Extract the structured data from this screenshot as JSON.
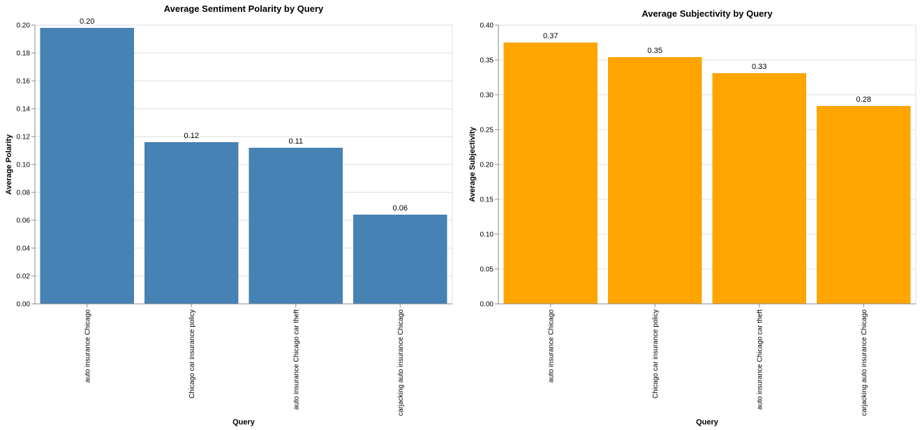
{
  "chart_data": [
    {
      "type": "bar",
      "title": "Average Sentiment Polarity by Query",
      "xlabel": "Query",
      "ylabel": "Average Polarity",
      "categories": [
        "auto insurance Chicago",
        "Chicago car insurance policy",
        "auto insurance Chicago car theft",
        "carjacking auto insurance Chicago"
      ],
      "values": [
        0.198,
        0.116,
        0.112,
        0.064
      ],
      "data_labels": [
        "0.20",
        "0.12",
        "0.11",
        "0.06"
      ],
      "ylim": [
        0,
        0.2
      ],
      "yticks": [
        0,
        0.02,
        0.04,
        0.06,
        0.08,
        0.1,
        0.12,
        0.14,
        0.16,
        0.18,
        0.2
      ],
      "ytick_labels": [
        "0.00",
        "0.02",
        "0.04",
        "0.06",
        "0.08",
        "0.10",
        "0.12",
        "0.14",
        "0.16",
        "0.18",
        "0.20"
      ],
      "color": "#4682b4",
      "grid": true
    },
    {
      "type": "bar",
      "title": "Average Subjectivity by Query",
      "xlabel": "Query",
      "ylabel": "Average Subjectivity",
      "categories": [
        "auto insurance Chicago",
        "Chicago car insurance policy",
        "auto insurance Chicago car theft",
        "carjacking auto insurance Chicago"
      ],
      "values": [
        0.375,
        0.354,
        0.331,
        0.284
      ],
      "data_labels": [
        "0.37",
        "0.35",
        "0.33",
        "0.28"
      ],
      "ylim": [
        0,
        0.4
      ],
      "yticks": [
        0,
        0.05,
        0.1,
        0.15,
        0.2,
        0.25,
        0.3,
        0.35,
        0.4
      ],
      "ytick_labels": [
        "0.00",
        "0.05",
        "0.10",
        "0.15",
        "0.20",
        "0.25",
        "0.30",
        "0.35",
        "0.40"
      ],
      "color": "#ffa500",
      "grid": true
    }
  ]
}
